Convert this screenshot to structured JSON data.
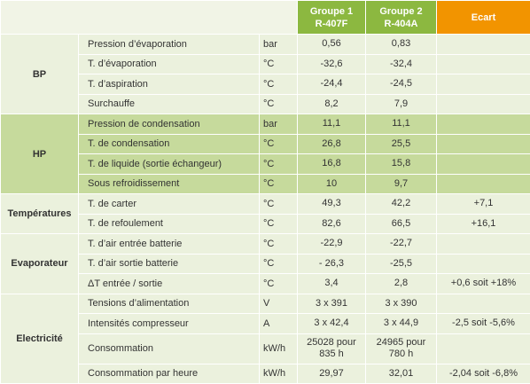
{
  "header": {
    "group1": [
      "Groupe 1",
      "R-407F"
    ],
    "group2": [
      "Groupe 2",
      "R-404A"
    ],
    "ecart": "Ecart"
  },
  "sections": [
    {
      "group": "BP",
      "rows": [
        [
          "Pression d’évaporation",
          "bar",
          "0,56",
          "0,83",
          null
        ],
        [
          "T. d’évaporation",
          "°C",
          "-32,6",
          "-32,4",
          null
        ],
        [
          "T. d’aspiration",
          "°C",
          "-24,4",
          "-24,5",
          null
        ],
        [
          "Surchauffe",
          "°C",
          "8,2",
          "7,9",
          null
        ]
      ]
    },
    {
      "group": "HP",
      "rows": [
        [
          "Pression de condensation",
          "bar",
          "11,1",
          "11,1",
          null
        ],
        [
          "T. de condensation",
          "°C",
          "26,8",
          "25,5",
          null
        ],
        [
          "T. de liquide (sortie échangeur)",
          "°C",
          "16,8",
          "15,8",
          null
        ],
        [
          "Sous refroidissement",
          "°C",
          "10",
          "9,7",
          null
        ]
      ]
    },
    {
      "group": "Températures",
      "rows": [
        [
          "T. de carter",
          "°C",
          "49,3",
          "42,2",
          "+7,1"
        ],
        [
          "T. de refoulement",
          "°C",
          "82,6",
          "66,5",
          "+16,1"
        ]
      ]
    },
    {
      "group": "Evaporateur",
      "rows": [
        [
          "T. d’air entrée batterie",
          "°C",
          "-22,9",
          "-22,7",
          null
        ],
        [
          "T. d’air sortie batterie",
          "°C",
          "- 26,3",
          "-25,5",
          null
        ],
        [
          "ΔT entrée / sortie",
          "°C",
          "3,4",
          "2,8",
          "+0,6 soit +18%"
        ]
      ]
    },
    {
      "group": "Electricité",
      "rows": [
        [
          "Tensions d’alimentation",
          "V",
          "3 x 391",
          "3 x 390",
          null
        ],
        [
          "Intensités compresseur",
          "A",
          "3 x 42,4",
          "3 x 44,9",
          "-2,5 soit -5,6%"
        ],
        [
          "Consommation",
          "kW/h",
          "25028 pour 835 h",
          "24965 pour 780 h",
          null
        ],
        [
          "Consommation par heure",
          "kW/h",
          "29,97",
          "32,01",
          "-2,04 soit -6,8%"
        ]
      ]
    }
  ]
}
